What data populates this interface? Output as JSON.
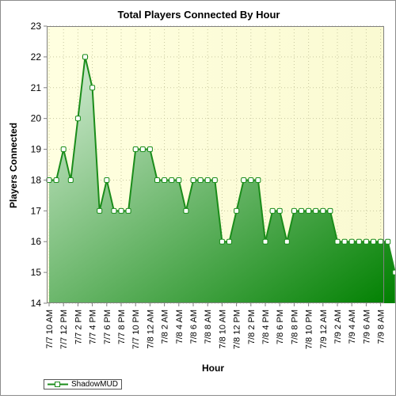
{
  "chart_data": {
    "type": "area",
    "title": "Total Players Connected By Hour",
    "xlabel": "Hour",
    "ylabel": "Players Connected",
    "ylim": [
      14,
      23
    ],
    "yticks": [
      14,
      15,
      16,
      17,
      18,
      19,
      20,
      21,
      22,
      23
    ],
    "grid": true,
    "legend_position": "bottom-left",
    "colors": {
      "line": "#1a8c1a",
      "fill_light": "#d8eed8",
      "fill_dark": "#008000",
      "plot_bg_light": "#ffffe0",
      "plot_bg_dark": "#fafad2",
      "marker_face": "#ffffff"
    },
    "x_tick_labels": [
      "7/7 10 AM",
      "7/7 12 PM",
      "7/7 2 PM",
      "7/7 4 PM",
      "7/7 6 PM",
      "7/7 8 PM",
      "7/7 10 PM",
      "7/8 12 AM",
      "7/8 2 AM",
      "7/8 4 AM",
      "7/8 6 AM",
      "7/8 8 AM",
      "7/8 10 AM",
      "7/8 12 PM",
      "7/8 2 PM",
      "7/8 4 PM",
      "7/8 6 PM",
      "7/8 8 PM",
      "7/8 10 PM",
      "7/9 12 AM",
      "7/9 2 AM",
      "7/9 4 AM",
      "7/9 6 AM",
      "7/9 8 AM"
    ],
    "series": [
      {
        "name": "ShadowMUD",
        "values": [
          18,
          18,
          19,
          18,
          20,
          22,
          21,
          17,
          18,
          17,
          17,
          17,
          19,
          19,
          19,
          18,
          18,
          18,
          18,
          17,
          18,
          18,
          18,
          18,
          16,
          16,
          17,
          18,
          18,
          18,
          16,
          17,
          17,
          16,
          17,
          17,
          17,
          17,
          17,
          17,
          16,
          16,
          16,
          16,
          16,
          16,
          16,
          16,
          15
        ]
      }
    ]
  }
}
